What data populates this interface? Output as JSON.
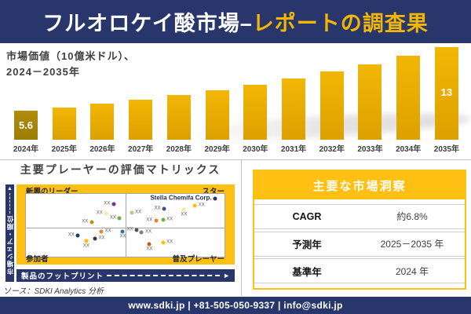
{
  "header": {
    "title_primary": "フルオロケイ酸市場–",
    "title_accent": "レポートの調査果"
  },
  "chart_header": {
    "line1": "市場価値（10億米ドル）、",
    "line2": "2024－2035年"
  },
  "chart_data": [
    {
      "type": "bar",
      "title": "市場価値（10億米ドル）、2024－2035年",
      "categories": [
        "2024年",
        "2025年",
        "2026年",
        "2027年",
        "2028年",
        "2029年",
        "2030年",
        "2031年",
        "2032年",
        "2033年",
        "2034年",
        "2035年"
      ],
      "values": [
        5.6,
        6.0,
        6.4,
        6.9,
        7.4,
        8.0,
        8.6,
        9.3,
        10.2,
        11.0,
        12.0,
        13
      ],
      "data_labels": {
        "0": "5.6",
        "11": "13"
      },
      "unit": "10億米ドル",
      "ylim": [
        2.2,
        13
      ],
      "grid": false,
      "legend": "none"
    },
    {
      "type": "scatter",
      "title": "主要プレーヤーの評価マトリックス",
      "xlabel": "製品のフットプリント",
      "ylabel": "市場シェア・順位",
      "quadrant_labels": {
        "top_left": "新興のリーダー",
        "top_right": "スター",
        "bottom_left": "参加者",
        "bottom_right": "普及プレーヤー"
      },
      "points": [
        {
          "x": 44.2,
          "y": 16.3,
          "color": "#7030A0",
          "label": "XX",
          "label_pos": "left"
        },
        {
          "x": 40.4,
          "y": 31.0,
          "color": "#FFE699",
          "label": "XX",
          "label_pos": "left"
        },
        {
          "x": 33.1,
          "y": 44.5,
          "color": "#BF9000",
          "label": "XX",
          "label_pos": "left"
        },
        {
          "x": 47.2,
          "y": 38.4,
          "color": "#70AD47",
          "label": "XX",
          "label_pos": "left"
        },
        {
          "x": 53.2,
          "y": 30.1,
          "color": "#A9D18E",
          "label": "XX",
          "label_pos": "right"
        },
        {
          "x": 69.6,
          "y": 23.7,
          "color": "#2F5597",
          "label": "XX",
          "label_pos": "left"
        },
        {
          "x": 79.6,
          "y": 24.5,
          "color": "#FFE699",
          "label": "XX",
          "label_pos": "below"
        },
        {
          "x": 85.1,
          "y": 19.1,
          "color": "#FFC000",
          "label": "XX",
          "label_pos": "right"
        },
        {
          "x": 65.5,
          "y": 42.9,
          "color": "#ED7D31",
          "label": "XX",
          "label_pos": "left"
        },
        {
          "x": 69.0,
          "y": 40.8,
          "color": "#70AD47",
          "label": "XX",
          "label_pos": "right"
        },
        {
          "x": 95.3,
          "y": 7.7,
          "color": "#203864",
          "label": "Stella Chemifa Corp.",
          "label_pos": "left",
          "label_style": "company"
        },
        {
          "x": 38.0,
          "y": 59.6,
          "color": "#ED7D31",
          "label": "XX",
          "label_pos": "right"
        },
        {
          "x": 48.8,
          "y": 59.6,
          "color": "#2E75B6",
          "label": "XX",
          "label_pos": "below"
        },
        {
          "x": 26.2,
          "y": 66.5,
          "color": "#203864",
          "label": "XX",
          "label_pos": "left"
        },
        {
          "x": 34.8,
          "y": 71.4,
          "color": "#3B3838",
          "label": "XX",
          "label_pos": "right"
        },
        {
          "x": 30.4,
          "y": 74.8,
          "color": "#FFC000",
          "label": "XX",
          "label_pos": "below"
        },
        {
          "x": 55.8,
          "y": 57.1,
          "color": "#44546A",
          "label": "XX",
          "label_pos": "left"
        },
        {
          "x": 58.3,
          "y": 61.3,
          "color": "#7F7F7F",
          "label": "XX",
          "label_pos": "right"
        },
        {
          "x": 62.2,
          "y": 80.0,
          "color": "#C55A11",
          "label": "XX",
          "label_pos": "below"
        },
        {
          "x": 69.0,
          "y": 77.9,
          "color": "#FFC000",
          "label": "XX",
          "label_pos": "right"
        }
      ]
    }
  ],
  "matrix": {
    "source": "ソース：SDKI Analytics 分析"
  },
  "insights": {
    "title": "主要な市場洞察",
    "rows": [
      {
        "label": "CAGR",
        "value": "約6.8%"
      },
      {
        "label": "予測年",
        "value": "2025－2035 年"
      },
      {
        "label": "基準年",
        "value": "2024 年"
      }
    ]
  },
  "footer": {
    "text": "www.sdki.jp | +81-505-050-9337 | info@sdki.jp"
  },
  "colors": {
    "navy": "#28366B",
    "gold": "#FDC013",
    "title_accent": "#F2B705",
    "bar": "#E8AC02",
    "first_bar": "#B08C0A"
  }
}
